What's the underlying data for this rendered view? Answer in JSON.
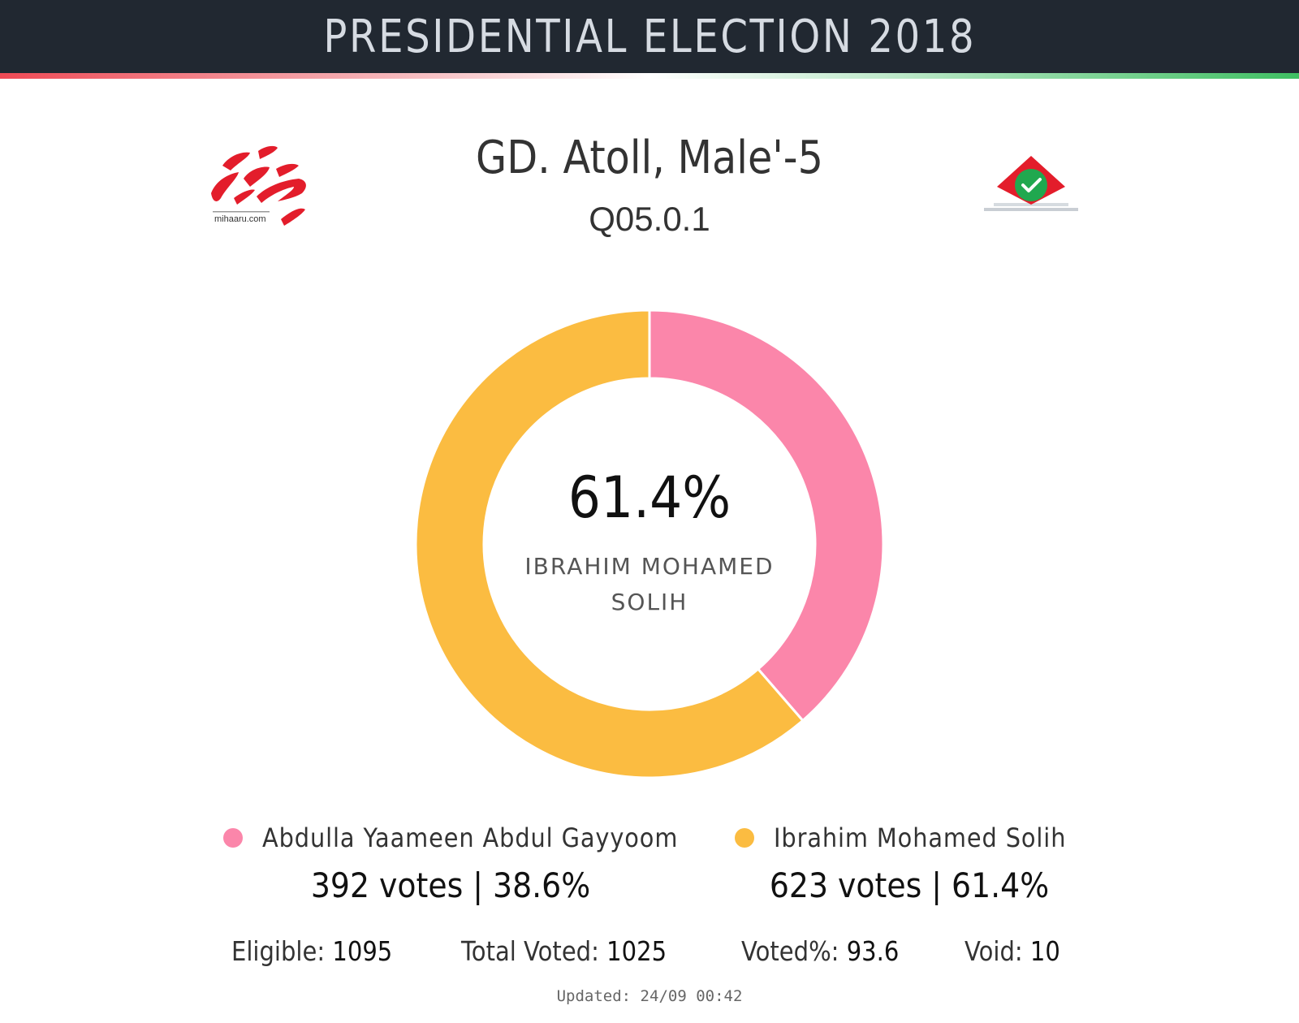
{
  "header": {
    "title": "PRESIDENTIAL ELECTION 2018"
  },
  "logos": {
    "left_brand": "mihaaru.com",
    "left_icon": "mihaaru-logo",
    "right_icon": "ballot-box-check-icon"
  },
  "location": {
    "title": "GD. Atoll, Male'-5",
    "box_code": "Q05.0.1"
  },
  "center": {
    "percent": "61.4%",
    "name": "IBRAHIM MOHAMED SOLIH"
  },
  "candidates": [
    {
      "name": "Abdulla Yaameen Abdul Gayyoom",
      "votes_text": "392 votes | 38.6%",
      "color": "#fb86aa"
    },
    {
      "name": "Ibrahim Mohamed Solih",
      "votes_text": "623 votes | 61.4%",
      "color": "#fbbc41"
    }
  ],
  "stats": {
    "eligible_label": "Eligible:",
    "eligible_value": "1095",
    "total_label": "Total Voted:",
    "total_value": "1025",
    "votedpct_label": "Voted%:",
    "votedpct_value": "93.6",
    "void_label": "Void:",
    "void_value": "10"
  },
  "updated": "Updated: 24/09 00:42",
  "colors": {
    "header_bg": "#212831",
    "header_text": "#d6dbe2",
    "stripe_left": "#ef4a55",
    "stripe_right": "#3fbf62"
  },
  "chart_data": {
    "type": "pie",
    "donut": true,
    "title": "",
    "categories": [
      "Abdulla Yaameen Abdul Gayyoom",
      "Ibrahim Mohamed Solih"
    ],
    "values": [
      392,
      623
    ],
    "percentages": [
      38.6,
      61.4
    ],
    "colors": [
      "#fb86aa",
      "#fbbc41"
    ],
    "legend": "bottom"
  }
}
